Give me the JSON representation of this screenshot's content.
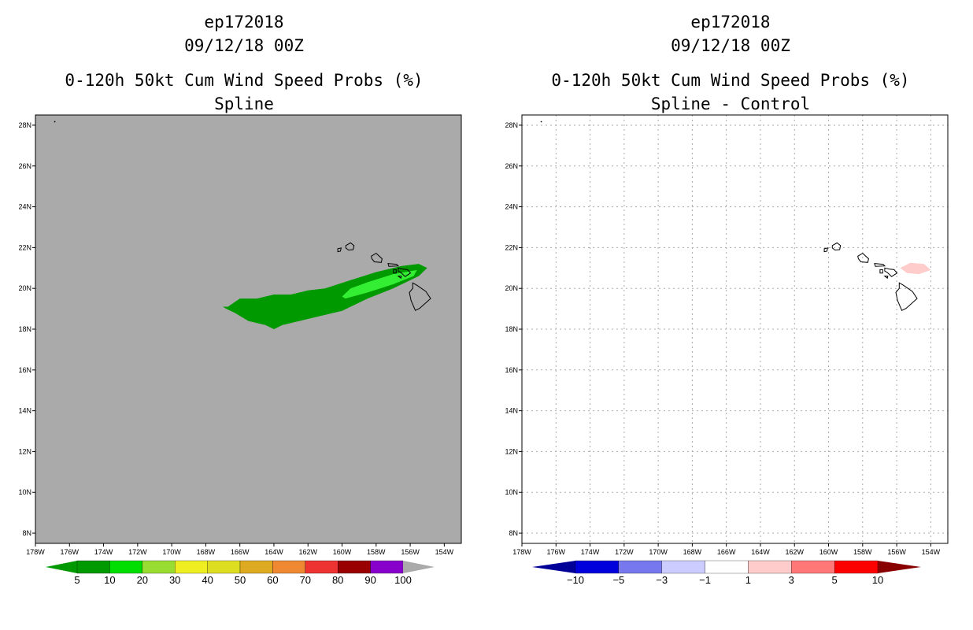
{
  "chart_data": [
    {
      "type": "heatmap",
      "storm_id": "ep172018",
      "date_line": "09/12/18 00Z",
      "title": "0-120h 50kt Cum Wind Speed Probs (%)",
      "subtitle": "Spline",
      "background": "#aaaaaa",
      "grid": false,
      "xlim": [
        -178,
        -153
      ],
      "ylim": [
        7.5,
        28.5
      ],
      "x_ticks": [
        "178W",
        "176W",
        "174W",
        "172W",
        "170W",
        "168W",
        "166W",
        "164W",
        "162W",
        "160W",
        "158W",
        "156W",
        "154W"
      ],
      "y_ticks": [
        "8N",
        "10N",
        "12N",
        "14N",
        "16N",
        "18N",
        "20N",
        "22N",
        "24N",
        "26N",
        "28N"
      ],
      "colorbar": {
        "labels": [
          "5",
          "10",
          "20",
          "30",
          "40",
          "50",
          "60",
          "70",
          "80",
          "90",
          "100"
        ],
        "colors": [
          "#009900",
          "#00dd00",
          "#99dd33",
          "#eeee22",
          "#dddd22",
          "#ddaa22",
          "#ee8833",
          "#ee3333",
          "#990000",
          "#8800cc"
        ],
        "end_color": "#aaaaaa"
      },
      "contours": [
        {
          "level": 5,
          "color": "#009900",
          "points": [
            [
              -167,
              19.1
            ],
            [
              -166.7,
              19.1
            ],
            [
              -166,
              19.5
            ],
            [
              -165,
              19.5
            ],
            [
              -164,
              19.7
            ],
            [
              -163,
              19.7
            ],
            [
              -162,
              19.9
            ],
            [
              -161,
              20.0
            ],
            [
              -159.5,
              20.4
            ],
            [
              -158,
              20.8
            ],
            [
              -156.5,
              21.1
            ],
            [
              -155.5,
              21.2
            ],
            [
              -155,
              21.0
            ],
            [
              -155.5,
              20.6
            ],
            [
              -157,
              20.0
            ],
            [
              -158.5,
              19.5
            ],
            [
              -160,
              18.9
            ],
            [
              -162,
              18.5
            ],
            [
              -163.5,
              18.2
            ],
            [
              -164,
              18.0
            ],
            [
              -164.5,
              18.2
            ],
            [
              -165.5,
              18.4
            ],
            [
              -166.3,
              18.8
            ],
            [
              -166.8,
              19.0
            ]
          ]
        },
        {
          "level": 10,
          "color": "#33ee33",
          "points": [
            [
              -160,
              19.6
            ],
            [
              -159.5,
              20.0
            ],
            [
              -158.5,
              20.3
            ],
            [
              -157,
              20.7
            ],
            [
              -155.6,
              20.9
            ],
            [
              -155.8,
              20.6
            ],
            [
              -157,
              20.2
            ],
            [
              -158.5,
              19.8
            ],
            [
              -159.8,
              19.5
            ]
          ]
        }
      ]
    },
    {
      "type": "heatmap",
      "storm_id": "ep172018",
      "date_line": "09/12/18 00Z",
      "title": "0-120h 50kt Cum Wind Speed Probs (%)",
      "subtitle": "Spline - Control",
      "background": "#ffffff",
      "grid": true,
      "xlim": [
        -178,
        -153
      ],
      "ylim": [
        7.5,
        28.5
      ],
      "x_ticks": [
        "178W",
        "176W",
        "174W",
        "172W",
        "170W",
        "168W",
        "166W",
        "164W",
        "162W",
        "160W",
        "158W",
        "156W",
        "154W"
      ],
      "y_ticks": [
        "8N",
        "10N",
        "12N",
        "14N",
        "16N",
        "18N",
        "20N",
        "22N",
        "24N",
        "26N",
        "28N"
      ],
      "colorbar": {
        "labels": [
          "-10",
          "-5",
          "-3",
          "-1",
          "1",
          "3",
          "5",
          "10"
        ],
        "colors": [
          "#0000dd",
          "#7777ee",
          "#ccccff",
          "#ffffff",
          "#ffcccc",
          "#ff7777",
          "#ff0000"
        ],
        "start_color": "#000099",
        "end_color": "#880000"
      },
      "contours": [
        {
          "level": 1,
          "color": "#ffcccc",
          "points": [
            [
              -155.8,
              21.0
            ],
            [
              -155.4,
              20.75
            ],
            [
              -154.7,
              20.7
            ],
            [
              -154.0,
              20.9
            ],
            [
              -154.4,
              21.2
            ],
            [
              -155.2,
              21.25
            ]
          ]
        }
      ]
    }
  ]
}
